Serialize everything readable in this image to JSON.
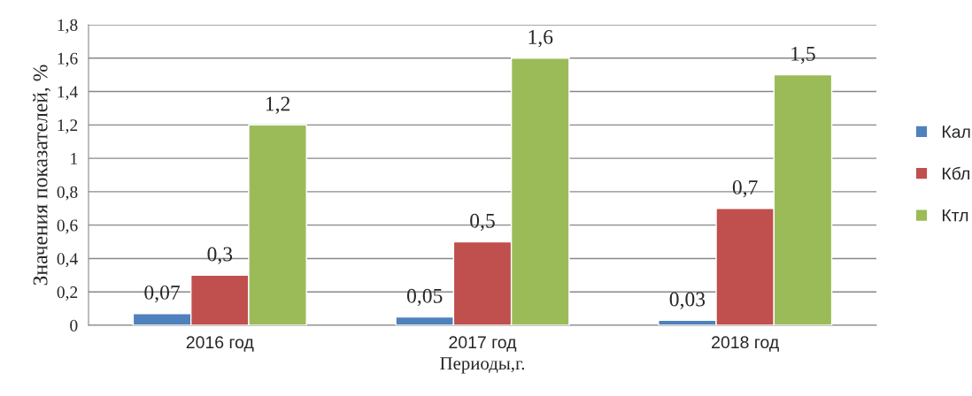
{
  "chart_data": {
    "type": "bar",
    "xlabel": "Периоды,г.",
    "ylabel": "Значения показателей, %",
    "categories": [
      "2016 год",
      "2017 год",
      "2018 год"
    ],
    "series": [
      {
        "name": "Кал",
        "color": "#4f81bd",
        "values": [
          0.07,
          0.05,
          0.03
        ],
        "value_labels": [
          "0,07",
          "0,05",
          "0,03"
        ]
      },
      {
        "name": "Кбл",
        "color": "#c0504d",
        "values": [
          0.3,
          0.5,
          0.7
        ],
        "value_labels": [
          "0,3",
          "0,5",
          "0,7"
        ]
      },
      {
        "name": "Ктл",
        "color": "#9bbb59",
        "values": [
          1.2,
          1.6,
          1.5
        ],
        "value_labels": [
          "1,2",
          "1,6",
          "1,5"
        ]
      }
    ],
    "ylim": [
      0,
      1.8
    ],
    "yticks": [
      0,
      {
        "value": 0.2,
        "label": "0,2"
      },
      {
        "value": 0.4,
        "label": "0,4"
      },
      {
        "value": 0.6,
        "label": "0,6"
      },
      {
        "value": 0.8,
        "label": "0,8"
      },
      1,
      {
        "value": 1.2,
        "label": "1,2"
      },
      {
        "value": 1.4,
        "label": "1,4"
      },
      {
        "value": 1.6,
        "label": "1,6"
      },
      {
        "value": 1.8,
        "label": "1,8"
      }
    ],
    "grid": "y",
    "legend": "right"
  }
}
